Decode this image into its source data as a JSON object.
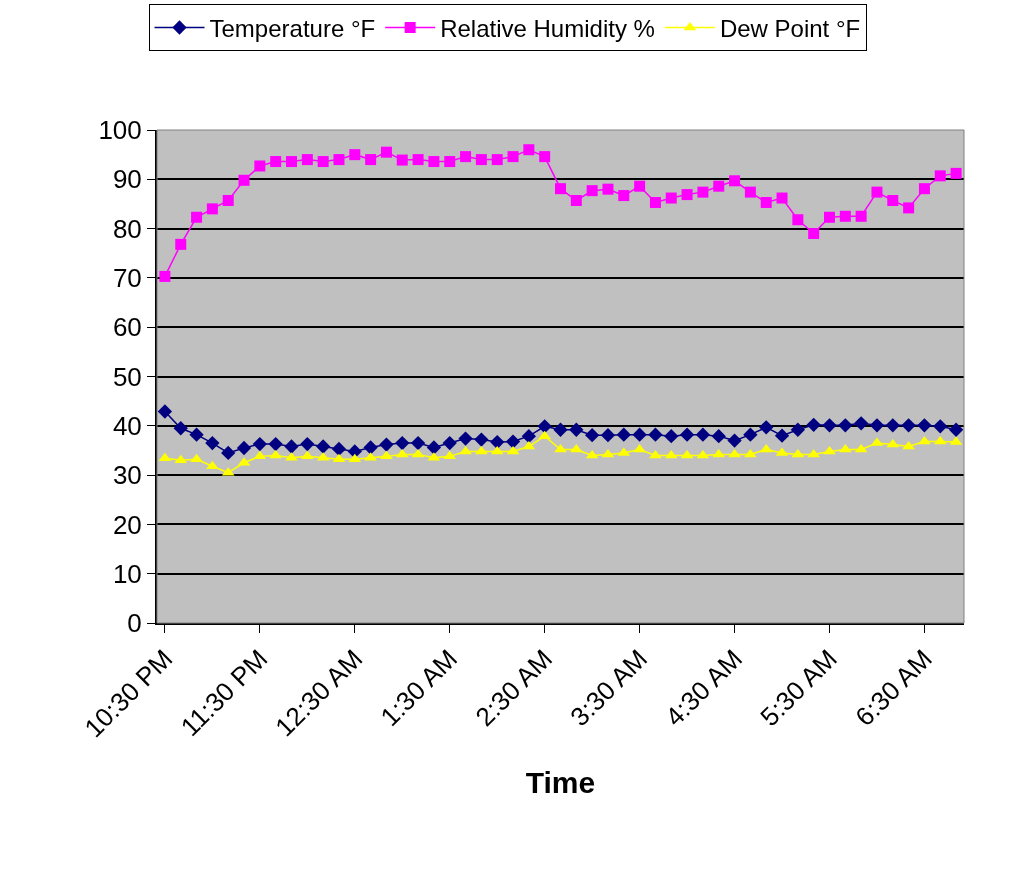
{
  "chart_data": {
    "type": "line",
    "xlabel": "Time",
    "categories": [
      "10:30 PM",
      null,
      null,
      null,
      null,
      null,
      "11:30 PM",
      null,
      null,
      null,
      null,
      null,
      "12:30 AM",
      null,
      null,
      null,
      null,
      null,
      "1:30 AM",
      null,
      null,
      null,
      null,
      null,
      "2:30 AM",
      null,
      null,
      null,
      null,
      null,
      "3:30 AM",
      null,
      null,
      null,
      null,
      null,
      "4:30 AM",
      null,
      null,
      null,
      null,
      null,
      "5:30 AM",
      null,
      null,
      null,
      null,
      null,
      "6:30 AM",
      null,
      null
    ],
    "series": [
      {
        "name": "Temperature °F",
        "color": "#000080",
        "marker": "diamond",
        "values": [
          42.9,
          39.5,
          38.2,
          36.5,
          34.5,
          35.5,
          36.3,
          36.3,
          35.8,
          36.3,
          35.8,
          35.3,
          34.8,
          35.6,
          36.2,
          36.5,
          36.5,
          35.6,
          36.5,
          37.4,
          37.2,
          36.7,
          36.8,
          37.9,
          39.9,
          39.2,
          39.2,
          38.1,
          38.1,
          38.2,
          38.2,
          38.2,
          37.9,
          38.2,
          38.2,
          37.9,
          37.0,
          38.2,
          39.7,
          38.0,
          39.2,
          40.2,
          40.1,
          40.1,
          40.5,
          40.1,
          40.1,
          40.1,
          40.1,
          39.9,
          39.2
        ]
      },
      {
        "name": "Relative Humidity %",
        "color": "#ff00ff",
        "marker": "square",
        "values": [
          70.3,
          76.8,
          82.3,
          84.0,
          85.7,
          89.8,
          92.7,
          93.6,
          93.6,
          94.0,
          93.6,
          94.0,
          95.0,
          94.0,
          95.5,
          93.9,
          94.0,
          93.6,
          93.6,
          94.6,
          94.0,
          94.0,
          94.6,
          96.0,
          94.6,
          88.1,
          85.7,
          87.7,
          88.0,
          86.7,
          88.6,
          85.3,
          86.2,
          86.9,
          87.4,
          88.6,
          89.7,
          87.4,
          85.3,
          86.2,
          81.8,
          79.0,
          82.3,
          82.5,
          82.5,
          87.4,
          85.7,
          84.2,
          88.1,
          90.7,
          91.2
        ]
      },
      {
        "name": "Dew Point °F",
        "color": "#ffff00",
        "marker": "triangle",
        "values": [
          33.4,
          33.0,
          33.2,
          31.8,
          30.5,
          32.5,
          33.8,
          34.0,
          33.5,
          33.8,
          33.5,
          33.2,
          33.2,
          33.5,
          33.8,
          34.2,
          34.2,
          33.5,
          33.8,
          34.8,
          34.8,
          34.8,
          34.8,
          35.8,
          37.9,
          35.2,
          35.2,
          34.0,
          34.2,
          34.5,
          35.2,
          34.0,
          34.0,
          34.0,
          34.0,
          34.2,
          34.2,
          34.2,
          35.2,
          34.5,
          34.2,
          34.2,
          34.8,
          35.2,
          35.2,
          36.5,
          36.2,
          35.8,
          36.8,
          36.8,
          36.7
        ]
      }
    ],
    "ylim": [
      0,
      100
    ],
    "yticks": [
      0,
      10,
      20,
      30,
      40,
      50,
      60,
      70,
      80,
      90,
      100
    ],
    "grid": "y",
    "legend": "top",
    "line_style": "solid"
  }
}
